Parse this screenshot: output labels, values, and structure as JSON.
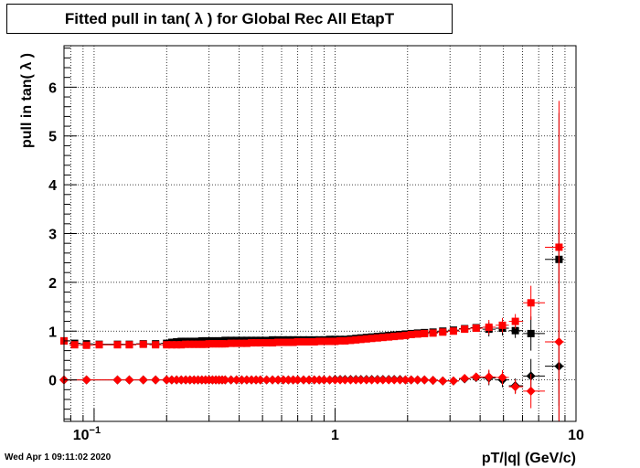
{
  "title": "Fitted pull in tan( λ ) for Global Rec All EtapT",
  "ylabel": "pull in tan( λ )",
  "xlabel": "pT/|q| (GeV/c)",
  "timestamp": "Wed Apr  1 09:11:02 2020",
  "chart_data": {
    "type": "scatter",
    "title": "Fitted pull in tan( λ ) for Global Rec All EtapT",
    "xlabel": "pT/|q| (GeV/c)",
    "ylabel": "pull in tan( λ )",
    "xscale": "log",
    "xlim": [
      0.075,
      10
    ],
    "ylim": [
      -0.85,
      6.85
    ],
    "grid": true,
    "x_tick_labels": [
      "10^-1",
      "1",
      "10"
    ],
    "y_tick_labels": [
      "0",
      "1",
      "2",
      "3",
      "4",
      "5",
      "6"
    ],
    "series": [
      {
        "color": "#000000",
        "marker": "square",
        "x": [
          0.075,
          0.083,
          0.093,
          0.105,
          0.125,
          0.14,
          0.16,
          0.18,
          0.2,
          0.21,
          0.22,
          0.23,
          0.24,
          0.25,
          0.26,
          0.27,
          0.28,
          0.29,
          0.3,
          0.31,
          0.32,
          0.33,
          0.34,
          0.35,
          0.37,
          0.39,
          0.41,
          0.43,
          0.45,
          0.47,
          0.49,
          0.52,
          0.55,
          0.58,
          0.61,
          0.64,
          0.67,
          0.7,
          0.74,
          0.78,
          0.82,
          0.86,
          0.9,
          0.95,
          1.0,
          1.05,
          1.1,
          1.16,
          1.22,
          1.28,
          1.35,
          1.42,
          1.5,
          1.58,
          1.67,
          1.76,
          1.86,
          1.96,
          2.07,
          2.2,
          2.35,
          2.55,
          2.8,
          3.1,
          3.45,
          3.85,
          4.35,
          4.95,
          5.6,
          6.5,
          8.5
        ],
        "y": [
          0.8,
          0.75,
          0.74,
          0.73,
          0.73,
          0.73,
          0.74,
          0.74,
          0.75,
          0.77,
          0.78,
          0.79,
          0.79,
          0.79,
          0.79,
          0.79,
          0.8,
          0.8,
          0.8,
          0.8,
          0.8,
          0.8,
          0.8,
          0.81,
          0.81,
          0.81,
          0.81,
          0.81,
          0.81,
          0.81,
          0.81,
          0.81,
          0.82,
          0.82,
          0.82,
          0.82,
          0.82,
          0.82,
          0.82,
          0.82,
          0.82,
          0.82,
          0.82,
          0.83,
          0.83,
          0.83,
          0.83,
          0.84,
          0.85,
          0.86,
          0.87,
          0.88,
          0.89,
          0.9,
          0.91,
          0.92,
          0.93,
          0.94,
          0.95,
          0.96,
          0.97,
          0.98,
          1.0,
          1.02,
          1.05,
          1.07,
          1.04,
          1.06,
          1.01,
          0.95,
          2.47
        ]
      },
      {
        "color": "#ff0000",
        "marker": "square",
        "x": [
          0.075,
          0.083,
          0.093,
          0.105,
          0.125,
          0.14,
          0.16,
          0.18,
          0.2,
          0.21,
          0.22,
          0.23,
          0.24,
          0.25,
          0.26,
          0.27,
          0.28,
          0.29,
          0.3,
          0.31,
          0.32,
          0.33,
          0.34,
          0.35,
          0.37,
          0.39,
          0.41,
          0.43,
          0.45,
          0.47,
          0.49,
          0.52,
          0.55,
          0.58,
          0.61,
          0.64,
          0.67,
          0.7,
          0.74,
          0.78,
          0.82,
          0.86,
          0.9,
          0.95,
          1.0,
          1.05,
          1.1,
          1.16,
          1.22,
          1.28,
          1.35,
          1.42,
          1.5,
          1.58,
          1.67,
          1.76,
          1.86,
          1.96,
          2.07,
          2.2,
          2.35,
          2.55,
          2.8,
          3.1,
          3.45,
          3.85,
          4.35,
          4.95,
          5.6,
          6.5,
          8.5
        ],
        "y": [
          0.8,
          0.72,
          0.71,
          0.72,
          0.72,
          0.72,
          0.73,
          0.72,
          0.72,
          0.72,
          0.72,
          0.72,
          0.73,
          0.73,
          0.73,
          0.73,
          0.73,
          0.73,
          0.74,
          0.74,
          0.74,
          0.74,
          0.74,
          0.74,
          0.75,
          0.75,
          0.75,
          0.75,
          0.76,
          0.76,
          0.76,
          0.76,
          0.76,
          0.77,
          0.77,
          0.77,
          0.77,
          0.78,
          0.78,
          0.78,
          0.78,
          0.79,
          0.79,
          0.79,
          0.79,
          0.8,
          0.8,
          0.81,
          0.82,
          0.83,
          0.84,
          0.85,
          0.86,
          0.87,
          0.88,
          0.89,
          0.9,
          0.91,
          0.93,
          0.94,
          0.95,
          0.96,
          0.98,
          1.0,
          1.04,
          1.06,
          1.08,
          1.12,
          1.2,
          1.58,
          2.72
        ]
      },
      {
        "color": "#000000",
        "marker": "diamond",
        "x": [
          0.075,
          0.093,
          0.125,
          0.14,
          0.16,
          0.18,
          0.2,
          0.21,
          0.22,
          0.23,
          0.24,
          0.25,
          0.26,
          0.27,
          0.28,
          0.29,
          0.3,
          0.31,
          0.32,
          0.33,
          0.34,
          0.35,
          0.37,
          0.39,
          0.41,
          0.43,
          0.45,
          0.47,
          0.49,
          0.52,
          0.55,
          0.58,
          0.61,
          0.64,
          0.67,
          0.7,
          0.74,
          0.78,
          0.82,
          0.86,
          0.9,
          0.95,
          1.0,
          1.05,
          1.1,
          1.16,
          1.22,
          1.28,
          1.35,
          1.42,
          1.5,
          1.58,
          1.67,
          1.76,
          1.86,
          1.96,
          2.07,
          2.2,
          2.35,
          2.55,
          2.8,
          3.1,
          3.45,
          3.85,
          4.35,
          4.95,
          5.6,
          6.5,
          8.5
        ],
        "y": [
          0.0,
          0.0,
          0.0,
          0.0,
          0.0,
          0.0,
          0.0,
          0.0,
          0.0,
          0.0,
          0.0,
          0.0,
          0.0,
          0.0,
          0.0,
          0.0,
          0.0,
          0.0,
          0.0,
          0.0,
          0.0,
          0.0,
          0.0,
          0.0,
          0.0,
          0.0,
          0.0,
          0.0,
          0.0,
          0.0,
          0.0,
          0.0,
          0.0,
          0.0,
          0.0,
          0.0,
          0.0,
          0.0,
          0.0,
          0.0,
          0.0,
          0.0,
          0.01,
          0.01,
          0.01,
          0.01,
          0.01,
          0.01,
          0.01,
          0.01,
          0.01,
          0.01,
          0.01,
          0.01,
          0.01,
          0.0,
          0.0,
          0.0,
          0.0,
          -0.01,
          -0.02,
          -0.02,
          0.02,
          0.05,
          0.04,
          0.0,
          -0.12,
          0.08,
          0.28
        ]
      },
      {
        "color": "#ff0000",
        "marker": "diamond",
        "x": [
          0.075,
          0.093,
          0.125,
          0.14,
          0.16,
          0.18,
          0.2,
          0.21,
          0.22,
          0.23,
          0.24,
          0.25,
          0.26,
          0.27,
          0.28,
          0.29,
          0.3,
          0.31,
          0.32,
          0.33,
          0.34,
          0.35,
          0.37,
          0.39,
          0.41,
          0.43,
          0.45,
          0.47,
          0.49,
          0.52,
          0.55,
          0.58,
          0.61,
          0.64,
          0.67,
          0.7,
          0.74,
          0.78,
          0.82,
          0.86,
          0.9,
          0.95,
          1.0,
          1.05,
          1.1,
          1.16,
          1.22,
          1.28,
          1.35,
          1.42,
          1.5,
          1.58,
          1.67,
          1.76,
          1.86,
          1.96,
          2.07,
          2.2,
          2.35,
          2.55,
          2.8,
          3.1,
          3.45,
          3.85,
          4.35,
          4.95,
          5.6,
          6.5,
          8.5
        ],
        "y": [
          0.0,
          0.0,
          0.0,
          0.0,
          0.0,
          0.0,
          0.0,
          0.0,
          0.0,
          0.0,
          0.0,
          0.0,
          0.0,
          0.0,
          0.0,
          0.0,
          0.0,
          0.0,
          0.0,
          0.0,
          0.0,
          0.0,
          0.0,
          0.0,
          0.0,
          0.0,
          0.0,
          0.0,
          0.0,
          0.0,
          0.0,
          0.0,
          0.0,
          0.0,
          0.0,
          0.0,
          0.0,
          0.0,
          0.0,
          0.0,
          0.0,
          0.0,
          0.0,
          0.0,
          0.0,
          0.0,
          0.0,
          0.0,
          0.0,
          0.0,
          0.0,
          0.0,
          0.0,
          0.0,
          0.0,
          0.0,
          0.0,
          0.0,
          0.0,
          -0.01,
          -0.02,
          -0.02,
          0.03,
          0.06,
          0.06,
          0.05,
          -0.14,
          -0.23,
          0.78
        ]
      }
    ]
  }
}
